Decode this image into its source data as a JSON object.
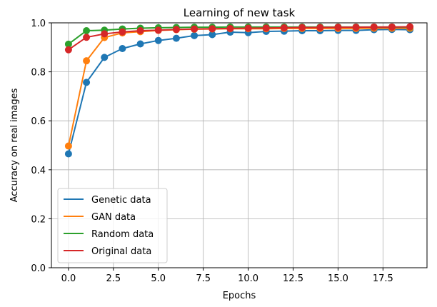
{
  "chart_data": {
    "type": "line",
    "title": "Learning of new task",
    "xlabel": "Epochs",
    "ylabel": "Accuracy on real images",
    "xlim": [
      -0.95,
      19.95
    ],
    "ylim": [
      0.0,
      1.0
    ],
    "xticks": [
      0.0,
      2.5,
      5.0,
      7.5,
      10.0,
      12.5,
      15.0,
      17.5
    ],
    "xtick_labels": [
      "0.0",
      "2.5",
      "5.0",
      "7.5",
      "10.0",
      "12.5",
      "15.0",
      "17.5"
    ],
    "yticks": [
      0.0,
      0.2,
      0.4,
      0.6,
      0.8,
      1.0
    ],
    "ytick_labels": [
      "0.0",
      "0.2",
      "0.4",
      "0.6",
      "0.8",
      "1.0"
    ],
    "grid": true,
    "legend_position": "lower-left",
    "x": [
      0,
      1,
      2,
      3,
      4,
      5,
      6,
      7,
      8,
      9,
      10,
      11,
      12,
      13,
      14,
      15,
      16,
      17,
      18,
      19
    ],
    "series": [
      {
        "name": "Genetic data",
        "color": "#1f77b4",
        "values": [
          0.465,
          0.757,
          0.859,
          0.895,
          0.914,
          0.928,
          0.937,
          0.948,
          0.952,
          0.962,
          0.96,
          0.965,
          0.966,
          0.968,
          0.968,
          0.969,
          0.969,
          0.972,
          0.973,
          0.972
        ]
      },
      {
        "name": "GAN data",
        "color": "#ff7f0e",
        "values": [
          0.497,
          0.845,
          0.94,
          0.959,
          0.964,
          0.969,
          0.972,
          0.974,
          0.975,
          0.976,
          0.976,
          0.976,
          0.977,
          0.977,
          0.977,
          0.977,
          0.977,
          0.978,
          0.978,
          0.978
        ]
      },
      {
        "name": "Random data",
        "color": "#2ca02c",
        "values": [
          0.913,
          0.968,
          0.97,
          0.975,
          0.978,
          0.98,
          0.981,
          0.982,
          0.982,
          0.983,
          0.983,
          0.983,
          0.983,
          0.983,
          0.983,
          0.983,
          0.983,
          0.983,
          0.983,
          0.983
        ]
      },
      {
        "name": "Original data",
        "color": "#d62728",
        "values": [
          0.89,
          0.941,
          0.955,
          0.963,
          0.968,
          0.97,
          0.973,
          0.975,
          0.976,
          0.977,
          0.978,
          0.979,
          0.98,
          0.981,
          0.981,
          0.982,
          0.982,
          0.983,
          0.983,
          0.984
        ]
      }
    ]
  }
}
